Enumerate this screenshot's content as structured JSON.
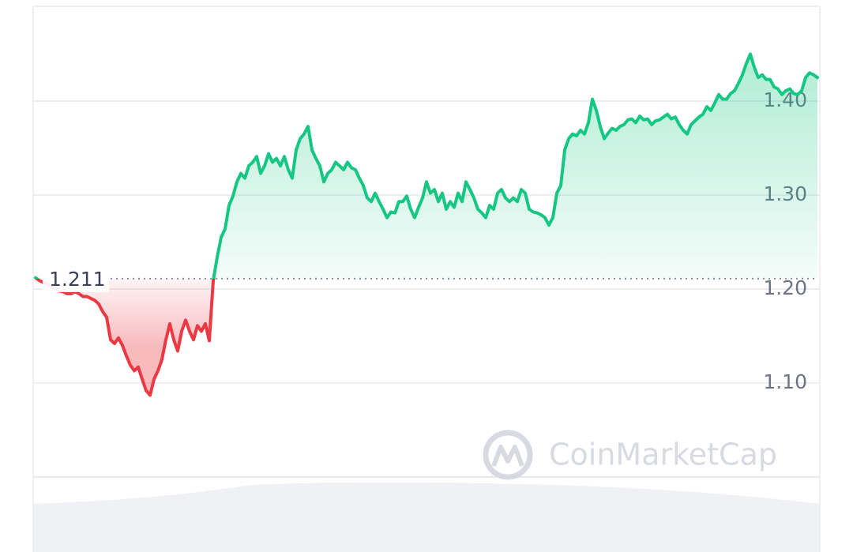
{
  "chart_data": {
    "type": "line",
    "values": [
      1.212,
      1.209,
      1.207,
      1.205,
      1.203,
      1.201,
      1.198,
      1.197,
      1.195,
      1.195,
      1.197,
      1.195,
      1.192,
      1.192,
      1.19,
      1.188,
      1.184,
      1.176,
      1.17,
      1.146,
      1.142,
      1.148,
      1.14,
      1.129,
      1.119,
      1.113,
      1.117,
      1.104,
      1.092,
      1.087,
      1.104,
      1.113,
      1.125,
      1.146,
      1.163,
      1.146,
      1.134,
      1.155,
      1.167,
      1.155,
      1.146,
      1.161,
      1.155,
      1.163,
      1.145,
      1.209,
      1.234,
      1.255,
      1.264,
      1.289,
      1.299,
      1.314,
      1.323,
      1.318,
      1.331,
      1.335,
      1.341,
      1.323,
      1.331,
      1.344,
      1.335,
      1.339,
      1.331,
      1.341,
      1.327,
      1.318,
      1.348,
      1.36,
      1.365,
      1.373,
      1.348,
      1.339,
      1.331,
      1.314,
      1.323,
      1.327,
      1.335,
      1.331,
      1.327,
      1.335,
      1.329,
      1.327,
      1.318,
      1.31,
      1.297,
      1.293,
      1.302,
      1.293,
      1.285,
      1.276,
      1.282,
      1.281,
      1.293,
      1.293,
      1.299,
      1.285,
      1.276,
      1.287,
      1.297,
      1.314,
      1.302,
      1.306,
      1.293,
      1.302,
      1.285,
      1.293,
      1.287,
      1.302,
      1.293,
      1.314,
      1.306,
      1.297,
      1.285,
      1.281,
      1.276,
      1.289,
      1.285,
      1.302,
      1.306,
      1.297,
      1.293,
      1.297,
      1.293,
      1.306,
      1.302,
      1.285,
      1.282,
      1.281,
      1.279,
      1.276,
      1.268,
      1.276,
      1.302,
      1.31,
      1.348,
      1.36,
      1.365,
      1.363,
      1.369,
      1.365,
      1.377,
      1.402,
      1.39,
      1.373,
      1.36,
      1.366,
      1.371,
      1.369,
      1.373,
      1.375,
      1.38,
      1.381,
      1.377,
      1.384,
      1.38,
      1.381,
      1.375,
      1.379,
      1.38,
      1.383,
      1.386,
      1.381,
      1.383,
      1.375,
      1.369,
      1.365,
      1.375,
      1.379,
      1.383,
      1.386,
      1.394,
      1.39,
      1.398,
      1.407,
      1.402,
      1.402,
      1.408,
      1.411,
      1.419,
      1.428,
      1.44,
      1.45,
      1.436,
      1.425,
      1.428,
      1.423,
      1.423,
      1.415,
      1.413,
      1.407,
      1.411,
      1.413,
      1.408,
      1.407,
      1.411,
      1.425,
      1.43,
      1.428,
      1.425
    ],
    "ylim": [
      1.0,
      1.5
    ],
    "yticks": [
      {
        "value": 1.1,
        "label": "1.10"
      },
      {
        "value": 1.2,
        "label": "1.20"
      },
      {
        "value": 1.3,
        "label": "1.30"
      },
      {
        "value": 1.4,
        "label": "1.40"
      }
    ],
    "grid": true,
    "baseline": 1.211,
    "color_up": "#16c784",
    "color_down": "#ea3943",
    "watermark": "CoinMarketCap"
  }
}
